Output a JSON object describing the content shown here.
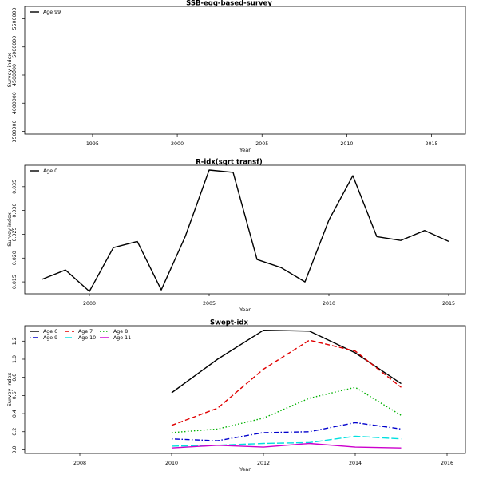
{
  "chart_data": [
    {
      "type": "line",
      "title": "SSB-egg-based-survey",
      "xlabel": "Year",
      "ylabel": "Survey index",
      "xlim": [
        1991,
        2017
      ],
      "ylim": [
        3450000,
        5720000
      ],
      "xticks": [
        1995,
        2000,
        2005,
        2010,
        2015
      ],
      "yticks": [
        3500000,
        4000000,
        4500000,
        5000000,
        5500000
      ],
      "series": [
        {
          "name": "Age 99",
          "color": "#000000",
          "dash": "solid",
          "x": [],
          "y": []
        }
      ]
    },
    {
      "type": "line",
      "title": "R-idx(sqrt transf)",
      "xlabel": "Year",
      "ylabel": "Survey index",
      "xlim": [
        1997.3,
        2015.7
      ],
      "ylim": [
        0.0125,
        0.0395
      ],
      "xticks": [
        2000,
        2005,
        2010,
        2015
      ],
      "yticks": [
        0.015,
        0.02,
        0.025,
        0.03,
        0.035
      ],
      "series": [
        {
          "name": "Age 0",
          "color": "#000000",
          "dash": "solid",
          "x": [
            1998,
            1999,
            2000,
            2001,
            2002,
            2003,
            2004,
            2005,
            2006,
            2007,
            2008,
            2009,
            2010,
            2011,
            2012,
            2013,
            2014,
            2015
          ],
          "y": [
            0.0155,
            0.0175,
            0.013,
            0.0222,
            0.0235,
            0.0133,
            0.0245,
            0.0385,
            0.038,
            0.0197,
            0.018,
            0.015,
            0.028,
            0.0373,
            0.0245,
            0.0237,
            0.0258,
            0.0235
          ]
        }
      ]
    },
    {
      "type": "line",
      "title": "Swept-idx",
      "xlabel": "Year",
      "ylabel": "Survey index",
      "xlim": [
        2006.8,
        2016.4
      ],
      "ylim": [
        -0.04,
        1.37
      ],
      "xticks": [
        2008,
        2010,
        2012,
        2014,
        2016
      ],
      "yticks": [
        0.0,
        0.2,
        0.4,
        0.6,
        0.8,
        1.0,
        1.2
      ],
      "series": [
        {
          "name": "Age 6",
          "color": "#000000",
          "dash": "solid",
          "x": [
            2010,
            2011,
            2012,
            2013,
            2014,
            2015
          ],
          "y": [
            0.63,
            1.0,
            1.32,
            1.31,
            1.07,
            0.73
          ]
        },
        {
          "name": "Age 7",
          "color": "#e00000",
          "dash": "dashed",
          "x": [
            2010,
            2011,
            2012,
            2013,
            2014,
            2015
          ],
          "y": [
            0.27,
            0.46,
            0.89,
            1.21,
            1.09,
            0.69
          ]
        },
        {
          "name": "Age 8",
          "color": "#00b000",
          "dash": "dotted",
          "x": [
            2010,
            2011,
            2012,
            2013,
            2014,
            2015
          ],
          "y": [
            0.19,
            0.23,
            0.35,
            0.57,
            0.69,
            0.38
          ]
        },
        {
          "name": "Age 9",
          "color": "#0000cc",
          "dash": "dotdash",
          "x": [
            2010,
            2011,
            2012,
            2013,
            2014,
            2015
          ],
          "y": [
            0.12,
            0.1,
            0.19,
            0.2,
            0.3,
            0.23
          ]
        },
        {
          "name": "Age 10",
          "color": "#00e0e0",
          "dash": "longdash",
          "x": [
            2010,
            2011,
            2012,
            2013,
            2014,
            2015
          ],
          "y": [
            0.04,
            0.05,
            0.07,
            0.08,
            0.15,
            0.12
          ]
        },
        {
          "name": "Age 11",
          "color": "#cc00cc",
          "dash": "solid",
          "x": [
            2010,
            2011,
            2012,
            2013,
            2014,
            2015
          ],
          "y": [
            0.02,
            0.05,
            0.03,
            0.07,
            0.03,
            0.02
          ]
        }
      ]
    }
  ]
}
